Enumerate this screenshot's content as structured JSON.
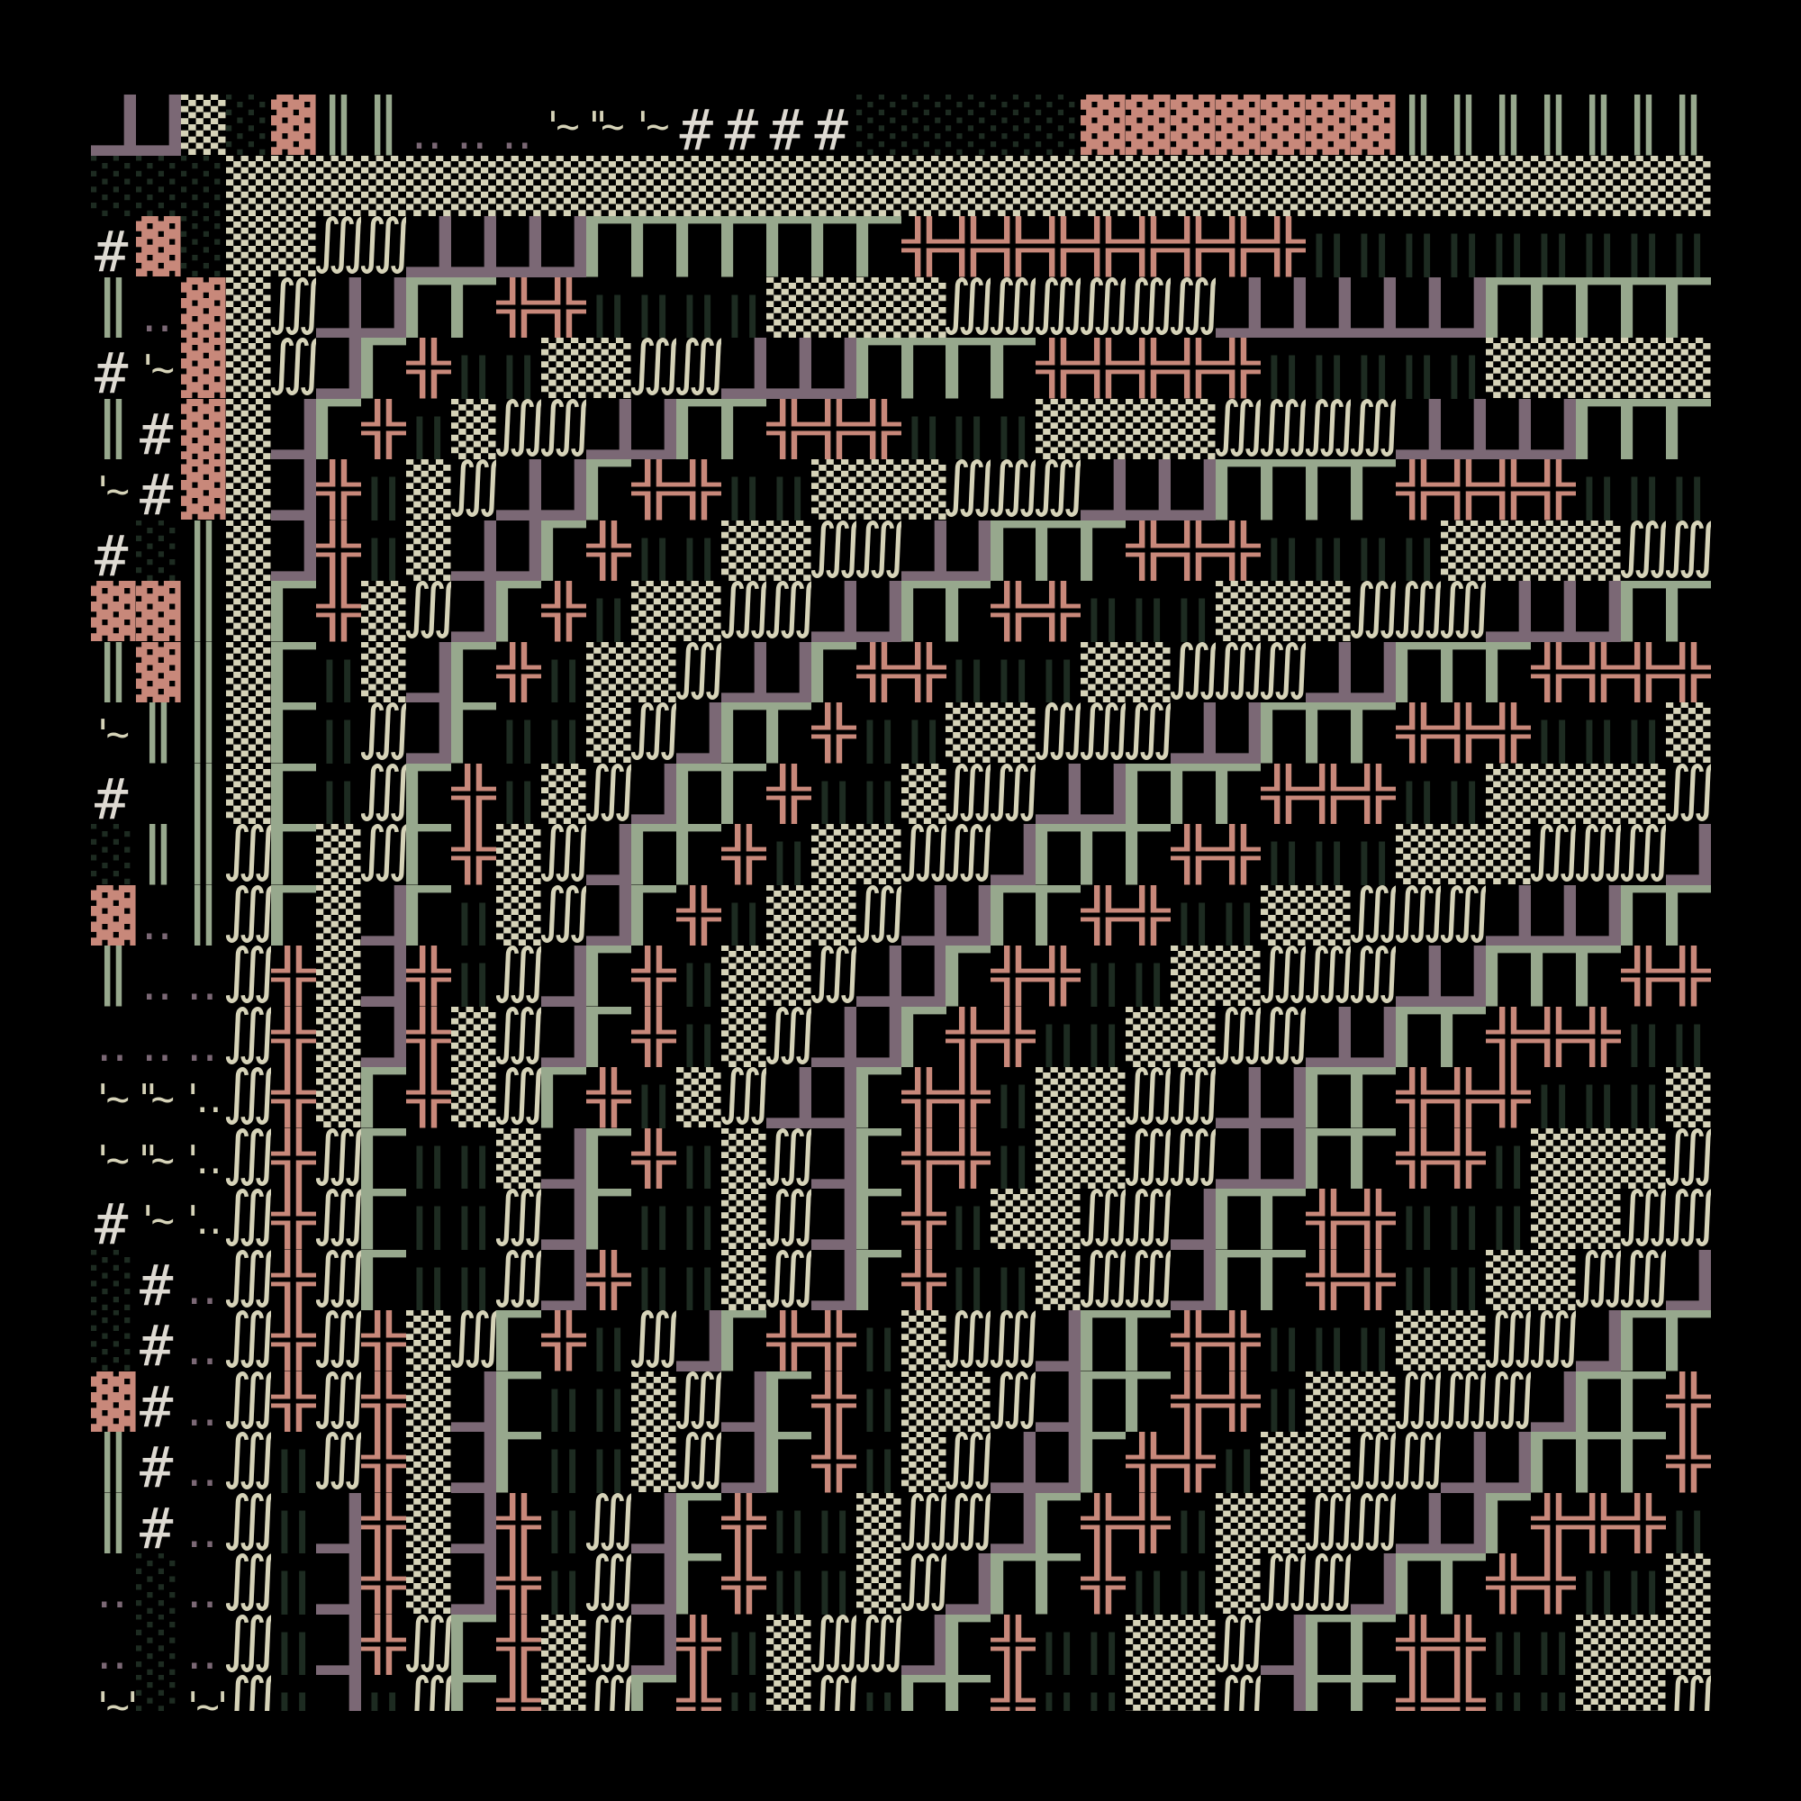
{
  "palette": {
    "background": "#000000",
    "mauve": "#7b6875",
    "sage": "#97a88d",
    "rose": "#c8887a",
    "cream": "#d6d3b8",
    "deep_green": "#1d2b21",
    "white": "#dedad2"
  },
  "grid": {
    "rows": [
      [
        "┛",
        "┛",
        "▒",
        "░",
        "▓",
        "║",
        "║",
        "‥",
        "‥",
        "‥",
        "'~",
        "\"~",
        "'~",
        "#",
        "#",
        "#",
        "#",
        "░",
        "░",
        "░",
        "░",
        "░",
        "▓",
        "▓",
        "▓",
        "▓",
        "▓",
        "▓",
        "▓",
        "║",
        "║",
        "║",
        "║",
        "║",
        "║",
        "║"
      ],
      [
        "░",
        "░",
        "░",
        "▒",
        "▒",
        "▒",
        "▒",
        "▒",
        "▒",
        "▒",
        "▒",
        "▒",
        "▒",
        "▒",
        "▒",
        "▒",
        "▒",
        "▒",
        "▒",
        "▒",
        "▒",
        "▒",
        "▒",
        "▒",
        "▒",
        "▒",
        "▒",
        "▒",
        "▒",
        "▒",
        "▒",
        "▒",
        "▒",
        "▒",
        "▒",
        "▒"
      ],
      [
        "#",
        "▓",
        "░",
        "▒",
        "▒",
        "∭",
        "∭",
        "┛",
        "┛",
        "┛",
        "┛",
        "┏",
        "┏",
        "┏",
        "┏",
        "┏",
        "┏",
        "┏",
        "╬",
        "╬",
        "╬",
        "╬",
        "╬",
        "╬",
        "╬",
        "╬",
        "╬",
        "‖",
        "‖",
        "‖",
        "‖",
        "‖",
        "‖",
        "‖",
        "‖",
        "‖"
      ],
      [
        "║",
        "‥",
        "▓",
        "▒",
        "∭",
        "┛",
        "┛",
        "┏",
        "┏",
        "╬",
        "╬",
        "‖",
        "‖",
        "‖",
        "‖",
        "▒",
        "▒",
        "▒",
        "▒",
        "∭",
        "∭",
        "∭",
        "∭",
        "∭",
        "∭",
        "┛",
        "┛",
        "┛",
        "┛",
        "┛",
        "┛",
        "┏",
        "┏",
        "┏",
        "┏",
        "┏"
      ],
      [
        "#",
        "'~",
        "▓",
        "▒",
        "∭",
        "┛",
        "┏",
        "╬",
        "‖",
        "‖",
        "▒",
        "▒",
        "∭",
        "∭",
        "┛",
        "┛",
        "┛",
        "┏",
        "┏",
        "┏",
        "┏",
        "╬",
        "╬",
        "╬",
        "╬",
        "╬",
        "‖",
        "‖",
        "‖",
        "‖",
        "‖",
        "▒",
        "▒",
        "▒",
        "▒",
        "▒"
      ],
      [
        "║",
        "#",
        "▓",
        "▒",
        "┛",
        "┏",
        "╬",
        "‖",
        "▒",
        "∭",
        "∭",
        "┛",
        "┛",
        "┏",
        "┏",
        "╬",
        "╬",
        "╬",
        "‖",
        "‖",
        "‖",
        "▒",
        "▒",
        "▒",
        "▒",
        "∭",
        "∭",
        "∭",
        "∭",
        "┛",
        "┛",
        "┛",
        "┛",
        "┏",
        "┏",
        "┏"
      ],
      [
        "'~",
        "#",
        "▓",
        "▒",
        "┛",
        "╬",
        "‖",
        "▒",
        "∭",
        "┛",
        "┛",
        "┏",
        "╬",
        "╬",
        "‖",
        "‖",
        "▒",
        "▒",
        "▒",
        "∭",
        "∭",
        "∭",
        "┛",
        "┛",
        "┛",
        "┏",
        "┏",
        "┏",
        "┏",
        "╬",
        "╬",
        "╬",
        "╬",
        "‖",
        "‖",
        "‖"
      ],
      [
        "#",
        "░",
        "║",
        "▒",
        "┛",
        "╬",
        "‖",
        "▒",
        "┛",
        "┛",
        "┏",
        "╬",
        "‖",
        "‖",
        "▒",
        "▒",
        "∭",
        "∭",
        "┛",
        "┛",
        "┏",
        "┏",
        "┏",
        "╬",
        "╬",
        "╬",
        "‖",
        "‖",
        "‖",
        "‖",
        "▒",
        "▒",
        "▒",
        "▒",
        "∭",
        "∭"
      ],
      [
        "▓",
        "▓",
        "║",
        "▒",
        "┏",
        "╬",
        "▒",
        "∭",
        "┛",
        "┏",
        "╬",
        "‖",
        "▒",
        "▒",
        "∭",
        "∭",
        "┛",
        "┛",
        "┏",
        "┏",
        "╬",
        "╬",
        "‖",
        "‖",
        "‖",
        "▒",
        "▒",
        "▒",
        "∭",
        "∭",
        "∭",
        "┛",
        "┛",
        "┛",
        "┏",
        "┏"
      ],
      [
        "║",
        "▓",
        "║",
        "▒",
        "┏",
        "‖",
        "▒",
        "┛",
        "┏",
        "╬",
        "‖",
        "▒",
        "▒",
        "∭",
        "┛",
        "┛",
        "┏",
        "╬",
        "╬",
        "‖",
        "‖",
        "‖",
        "▒",
        "▒",
        "∭",
        "∭",
        "∭",
        "┛",
        "┛",
        "┏",
        "┏",
        "┏",
        "╬",
        "╬",
        "╬",
        "╬"
      ],
      [
        "'~",
        "║",
        "║",
        "▒",
        "┏",
        "‖",
        "∭",
        "┛",
        "┏",
        "‖",
        "‖",
        "▒",
        "∭",
        "┛",
        "┏",
        "┏",
        "╬",
        "‖",
        "‖",
        "▒",
        "▒",
        "∭",
        "∭",
        "∭",
        "┛",
        "┛",
        "┏",
        "┏",
        "┏",
        "╬",
        "╬",
        "╬",
        "‖",
        "‖",
        "‖",
        "▒"
      ],
      [
        "#",
        "",
        "║",
        "▒",
        "┏",
        "‖",
        "∭",
        "┏",
        "╬",
        "‖",
        "▒",
        "∭",
        "┛",
        "┏",
        "┏",
        "╬",
        "‖",
        "‖",
        "▒",
        "∭",
        "∭",
        "┛",
        "┛",
        "┏",
        "┏",
        "┏",
        "╬",
        "╬",
        "╬",
        "‖",
        "‖",
        "▒",
        "▒",
        "▒",
        "▒",
        "∭"
      ],
      [
        "░",
        "║",
        "║",
        "∭",
        "┏",
        "▒",
        "∭",
        "┏",
        "╬",
        "▒",
        "∭",
        "┛",
        "┏",
        "┏",
        "╬",
        "‖",
        "▒",
        "▒",
        "∭",
        "∭",
        "┛",
        "┏",
        "┏",
        "┏",
        "╬",
        "╬",
        "‖",
        "‖",
        "‖",
        "▒",
        "▒",
        "▒",
        "∭",
        "∭",
        "∭",
        "┛"
      ],
      [
        "▓",
        "‥",
        "║",
        "∭",
        "┏",
        "▒",
        "┛",
        "┏",
        "‖",
        "▒",
        "∭",
        "┛",
        "┏",
        "╬",
        "‖",
        "▒",
        "▒",
        "∭",
        "┛",
        "┛",
        "┏",
        "┏",
        "╬",
        "╬",
        "‖",
        "‖",
        "▒",
        "▒",
        "∭",
        "∭",
        "∭",
        "┛",
        "┛",
        "┛",
        "┏",
        "┏"
      ],
      [
        "║",
        "‥",
        "‥",
        "∭",
        "╬",
        "▒",
        "┛",
        "╬",
        "‖",
        "∭",
        "┛",
        "┏",
        "╬",
        "‖",
        "▒",
        "▒",
        "∭",
        "┛",
        "┛",
        "┏",
        "╬",
        "╬",
        "‖",
        "‖",
        "▒",
        "▒",
        "∭",
        "∭",
        "∭",
        "┛",
        "┛",
        "┏",
        "┏",
        "┏",
        "╬",
        "╬"
      ],
      [
        "‥",
        "‥",
        "‥",
        "∭",
        "╬",
        "▒",
        "┛",
        "╬",
        "▒",
        "∭",
        "┛",
        "┏",
        "╬",
        "‖",
        "▒",
        "∭",
        "┛",
        "┛",
        "┏",
        "╬",
        "╬",
        "‖",
        "‖",
        "▒",
        "▒",
        "∭",
        "∭",
        "┛",
        "┛",
        "┏",
        "┏",
        "╬",
        "╬",
        "╬",
        "‖",
        "‖"
      ],
      [
        "'~",
        "\"~",
        "'‥",
        "∭",
        "╬",
        "▒",
        "┏",
        "╬",
        "▒",
        "∭",
        "┏",
        "╬",
        "‖",
        "▒",
        "∭",
        "┛",
        "┛",
        "┏",
        "╬",
        "╬",
        "‖",
        "▒",
        "▒",
        "∭",
        "∭",
        "┛",
        "┛",
        "┏",
        "┏",
        "╬",
        "╬",
        "╬",
        "‖",
        "‖",
        "‖",
        "▒"
      ],
      [
        "'~",
        "\"~",
        "'‥",
        "∭",
        "╬",
        "∭",
        "┏",
        "‖",
        "‖",
        "▒",
        "┛",
        "┏",
        "╬",
        "‖",
        "▒",
        "∭",
        "┛",
        "┏",
        "╬",
        "╬",
        "‖",
        "▒",
        "▒",
        "∭",
        "∭",
        "┛",
        "┛",
        "┏",
        "┏",
        "╬",
        "╬",
        "‖",
        "▒",
        "▒",
        "▒",
        "∭"
      ],
      [
        "#",
        "'~",
        "'‥",
        "∭",
        "╬",
        "∭",
        "┏",
        "‖",
        "‖",
        "∭",
        "┛",
        "┏",
        "‖",
        "‖",
        "▒",
        "∭",
        "┛",
        "┏",
        "╬",
        "‖",
        "▒",
        "▒",
        "∭",
        "∭",
        "┛",
        "┏",
        "┏",
        "╬",
        "╬",
        "‖",
        "‖",
        "‖",
        "▒",
        "▒",
        "∭",
        "∭"
      ],
      [
        "░",
        "#",
        "‥",
        "∭",
        "╬",
        "∭",
        "┏",
        "‖",
        "‖",
        "∭",
        "┛",
        "╬",
        "‖",
        "‖",
        "▒",
        "∭",
        "┛",
        "┏",
        "╬",
        "‖",
        "‖",
        "▒",
        "∭",
        "∭",
        "┛",
        "┏",
        "┏",
        "╬",
        "╬",
        "‖",
        "‖",
        "▒",
        "▒",
        "∭",
        "∭",
        "┛"
      ],
      [
        "░",
        "#",
        "‥",
        "∭",
        "╬",
        "∭",
        "╬",
        "▒",
        "∭",
        "┏",
        "╬",
        "‖",
        "∭",
        "┛",
        "┏",
        "╬",
        "╬",
        "‖",
        "▒",
        "∭",
        "∭",
        "┛",
        "┏",
        "┏",
        "╬",
        "╬",
        "‖",
        "‖",
        "‖",
        "▒",
        "▒",
        "∭",
        "∭",
        "┛",
        "┏",
        "┏"
      ],
      [
        "▓",
        "#",
        "‥",
        "∭",
        "╬",
        "∭",
        "╬",
        "▒",
        "┛",
        "┏",
        "‖",
        "‖",
        "▒",
        "∭",
        "┛",
        "┏",
        "╬",
        "‖",
        "▒",
        "▒",
        "∭",
        "┛",
        "┏",
        "┏",
        "╬",
        "╬",
        "‖",
        "▒",
        "▒",
        "∭",
        "∭",
        "∭",
        "┛",
        "┏",
        "┏",
        "╬"
      ],
      [
        "║",
        "#",
        "‥",
        "∭",
        "‖",
        "∭",
        "╬",
        "▒",
        "┛",
        "┏",
        "‖",
        "‖",
        "▒",
        "∭",
        "┛",
        "┏",
        "╬",
        "‖",
        "▒",
        "∭",
        "┛",
        "┛",
        "┏",
        "╬",
        "╬",
        "‖",
        "▒",
        "▒",
        "∭",
        "∭",
        "┛",
        "┛",
        "┏",
        "┏",
        "┏",
        "╬"
      ],
      [
        "║",
        "#",
        "‥",
        "∭",
        "‖",
        "┛",
        "╬",
        "▒",
        "┛",
        "╬",
        "‖",
        "∭",
        "┛",
        "┏",
        "╬",
        "‖",
        "‖",
        "▒",
        "∭",
        "∭",
        "┛",
        "┏",
        "╬",
        "╬",
        "‖",
        "▒",
        "▒",
        "∭",
        "∭",
        "┛",
        "┛",
        "┏",
        "╬",
        "╬",
        "╬",
        "‖"
      ],
      [
        "‥",
        "░",
        "‥",
        "∭",
        "‖",
        "┛",
        "╬",
        "▒",
        "┛",
        "╬",
        "‖",
        "∭",
        "┛",
        "┏",
        "╬",
        "‖",
        "‖",
        "▒",
        "∭",
        "┛",
        "┏",
        "┏",
        "╬",
        "‖",
        "‖",
        "▒",
        "∭",
        "∭",
        "┛",
        "┏",
        "┏",
        "╬",
        "╬",
        "‖",
        "‖",
        "▒"
      ],
      [
        "‥",
        "░",
        "‥",
        "∭",
        "‖",
        "┛",
        "╬",
        "∭",
        "┏",
        "╬",
        "▒",
        "∭",
        "┛",
        "╬",
        "‖",
        "▒",
        "∭",
        "∭",
        "┛",
        "┏",
        "╬",
        "‖",
        "‖",
        "▒",
        "▒",
        "∭",
        "┛",
        "┏",
        "┏",
        "╬",
        "╬",
        "‖",
        "‖",
        "▒",
        "▒",
        "▒"
      ],
      [
        "'~'",
        "░",
        "'~'",
        "∭",
        "‖",
        "┛",
        "‖",
        "∭",
        "┏",
        "╬",
        "▒",
        "∭",
        "┏",
        "╬",
        "‖",
        "▒",
        "∭",
        "‖",
        "┏",
        "┏",
        "╬",
        "‖",
        "‖",
        "▒",
        "▒",
        "∭",
        "┛",
        "┏",
        "┏",
        "╬",
        "╬",
        "‖",
        "‖",
        "▒",
        "▒",
        "∭"
      ]
    ]
  }
}
